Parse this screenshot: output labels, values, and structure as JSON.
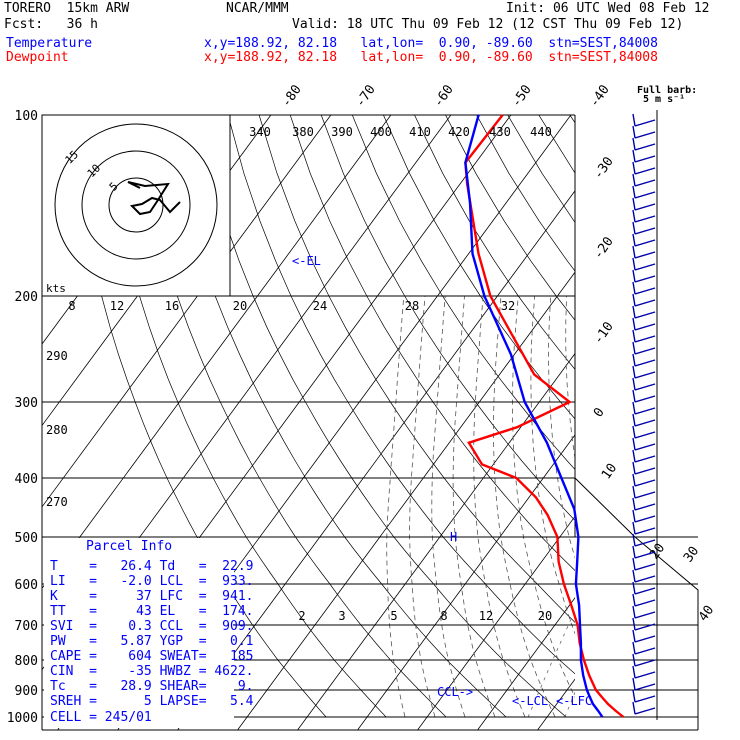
{
  "header": {
    "model": "TORERO  15km ARW",
    "org": "NCAR/MMM",
    "init": "Init: 06 UTC Wed 08 Feb 12",
    "fcst": "Fcst:   36 h",
    "valid": "Valid: 18 UTC Thu 09 Feb 12 (12 CST Thu 09 Feb 12)",
    "temp_label": "Temperature",
    "temp_info": "x,y=188.92, 82.18   lat,lon=  0.90, -89.60  stn=SEST,84008",
    "dew_label": "Dewpoint",
    "dew_info": "x,y=188.92, 82.18   lat,lon=  0.90, -89.60  stn=SEST,84008"
  },
  "colors": {
    "temperature": "#ff0000",
    "dewpoint": "#0000ff",
    "parcel": "#0000ff"
  },
  "barb_key": {
    "title": "Full barb:",
    "units": "5 m s⁻¹"
  },
  "parcel_info": {
    "title": "Parcel Info",
    "rows": [
      {
        "l1": "T  ",
        "v1": "26.4",
        "l2": "Td",
        "v2": "22.9"
      },
      {
        "l1": "LI ",
        "v1": "-2.0",
        "l2": "LCL",
        "v2": "933."
      },
      {
        "l1": "K  ",
        "v1": "37",
        "l2": "LFC",
        "v2": "941."
      },
      {
        "l1": "TT ",
        "v1": "43",
        "l2": "EL ",
        "v2": "174."
      },
      {
        "l1": "SVI",
        "v1": "0.3",
        "l2": "CCL",
        "v2": "909."
      },
      {
        "l1": "PW ",
        "v1": "5.87",
        "l2": "YGP",
        "v2": "0.1"
      },
      {
        "l1": "CAPE",
        "v1": "604",
        "l2": "SWEAT",
        "v2": "185"
      },
      {
        "l1": "CIN",
        "v1": "-35",
        "l2": "HWBZ",
        "v2": "4622."
      },
      {
        "l1": "Tc ",
        "v1": "28.9",
        "l2": "SHEAR",
        "v2": "9."
      },
      {
        "l1": "SREH",
        "v1": "5",
        "l2": "LAPSE",
        "v2": "5.4"
      }
    ],
    "cell": "CELL = 245/01"
  },
  "hodograph": {
    "units": "kts",
    "ring_labels": [
      "5",
      "10",
      "15"
    ]
  },
  "markers": {
    "el": "<-EL",
    "lcl": "<-LCL",
    "lfc": "<-LFC",
    "ccl": "CCL->",
    "hwbz": "H"
  },
  "chart_data": {
    "type": "line",
    "title": "",
    "pressure_levels": [
      1000,
      900,
      800,
      700,
      600,
      500,
      400,
      300,
      200,
      100
    ],
    "pressure_labels": [
      "1000",
      "900",
      "800",
      "700",
      "600",
      "500",
      "400",
      "300",
      "200",
      "100"
    ],
    "temperature_axis_labels": [
      "-80",
      "-70",
      "-60",
      "-50",
      "-40",
      "-30",
      "-20",
      "-10",
      "0",
      "10",
      "20",
      "30",
      "40"
    ],
    "temperature_axis_values": [
      -80,
      -70,
      -60,
      -50,
      -40,
      -30,
      -20,
      -10,
      0,
      10,
      20,
      30,
      40
    ],
    "theta_e_labels": [
      "340",
      "380",
      "390",
      "400",
      "410",
      "420",
      "430",
      "440"
    ],
    "theta_e_values": [
      340,
      380,
      390,
      400,
      410,
      420,
      430,
      440
    ],
    "mixing_ratio_upper_labels": [
      "8",
      "12",
      "16",
      "20",
      "24",
      "28",
      "32"
    ],
    "mixing_ratio_upper_values": [
      8,
      12,
      16,
      20,
      24,
      28,
      32
    ],
    "mixing_ratio_lower_labels": [
      "2",
      "3",
      "5",
      "8",
      "12",
      "20"
    ],
    "mixing_ratio_lower_values": [
      2,
      3,
      5,
      8,
      12,
      20
    ],
    "theta_labels": [
      "290",
      "280",
      "270"
    ],
    "theta_values": [
      290,
      280,
      270
    ],
    "series": [
      {
        "name": "Temperature",
        "points": [
          [
            1000,
            26.4
          ],
          [
            975,
            24.2
          ],
          [
            950,
            22.1
          ],
          [
            925,
            20.2
          ],
          [
            900,
            18.3
          ],
          [
            850,
            15.3
          ],
          [
            800,
            12.4
          ],
          [
            750,
            9.5
          ],
          [
            700,
            6.8
          ],
          [
            650,
            3.2
          ],
          [
            600,
            -0.8
          ],
          [
            550,
            -4.6
          ],
          [
            500,
            -8.0
          ],
          [
            460,
            -12.5
          ],
          [
            430,
            -16.8
          ],
          [
            400,
            -22.5
          ],
          [
            380,
            -30.0
          ],
          [
            350,
            -35.0
          ],
          [
            330,
            -29.0
          ],
          [
            300,
            -23.5
          ],
          [
            270,
            -33.0
          ],
          [
            200,
            -50.5
          ],
          [
            170,
            -58.0
          ],
          [
            130,
            -69.0
          ],
          [
            120,
            -72.0
          ],
          [
            100,
            -72.0
          ]
        ]
      },
      {
        "name": "Dewpoint",
        "points": [
          [
            1000,
            22.9
          ],
          [
            975,
            21.3
          ],
          [
            950,
            19.6
          ],
          [
            925,
            18.2
          ],
          [
            900,
            16.8
          ],
          [
            850,
            14.3
          ],
          [
            800,
            11.9
          ],
          [
            750,
            9.7
          ],
          [
            700,
            7.2
          ],
          [
            650,
            4.5
          ],
          [
            600,
            1.2
          ],
          [
            550,
            -1.5
          ],
          [
            500,
            -4.5
          ],
          [
            450,
            -8.8
          ],
          [
            400,
            -15.0
          ],
          [
            350,
            -22.0
          ],
          [
            300,
            -31.0
          ],
          [
            250,
            -39.5
          ],
          [
            200,
            -51.5
          ],
          [
            170,
            -59.0
          ],
          [
            140,
            -66.0
          ],
          [
            120,
            -72.0
          ],
          [
            100,
            -76.0
          ]
        ]
      }
    ],
    "pressure_range": [
      1000,
      100
    ],
    "temperature_range": [
      -40,
      40
    ]
  }
}
